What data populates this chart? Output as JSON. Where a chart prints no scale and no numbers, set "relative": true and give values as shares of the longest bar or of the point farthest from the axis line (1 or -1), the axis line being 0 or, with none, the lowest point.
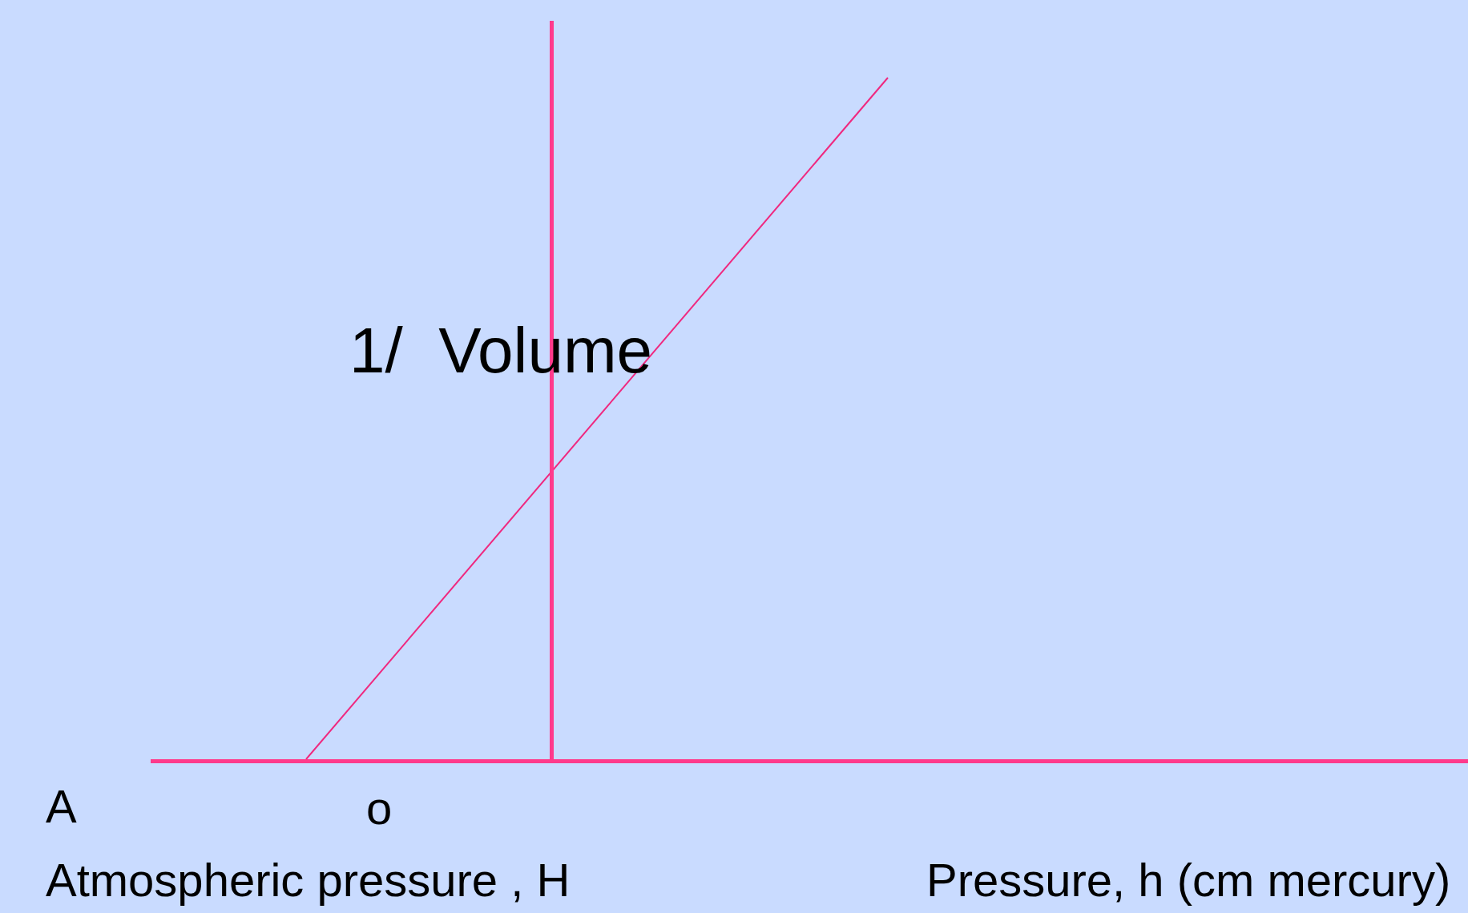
{
  "chart_data": {
    "type": "line",
    "relative": true,
    "ylabel": "1/  Volume",
    "xlabel": "Pressure, h (cm mercury)",
    "annotations": [
      "A",
      "o",
      "Atmospheric pressure , H"
    ],
    "categories": [
      null,
      null
    ],
    "series": [
      {
        "color": "#f0287f",
        "values": [
          0,
          1
        ]
      }
    ],
    "marker": "none",
    "line_style": "solid",
    "grid": false,
    "legend": false
  }
}
